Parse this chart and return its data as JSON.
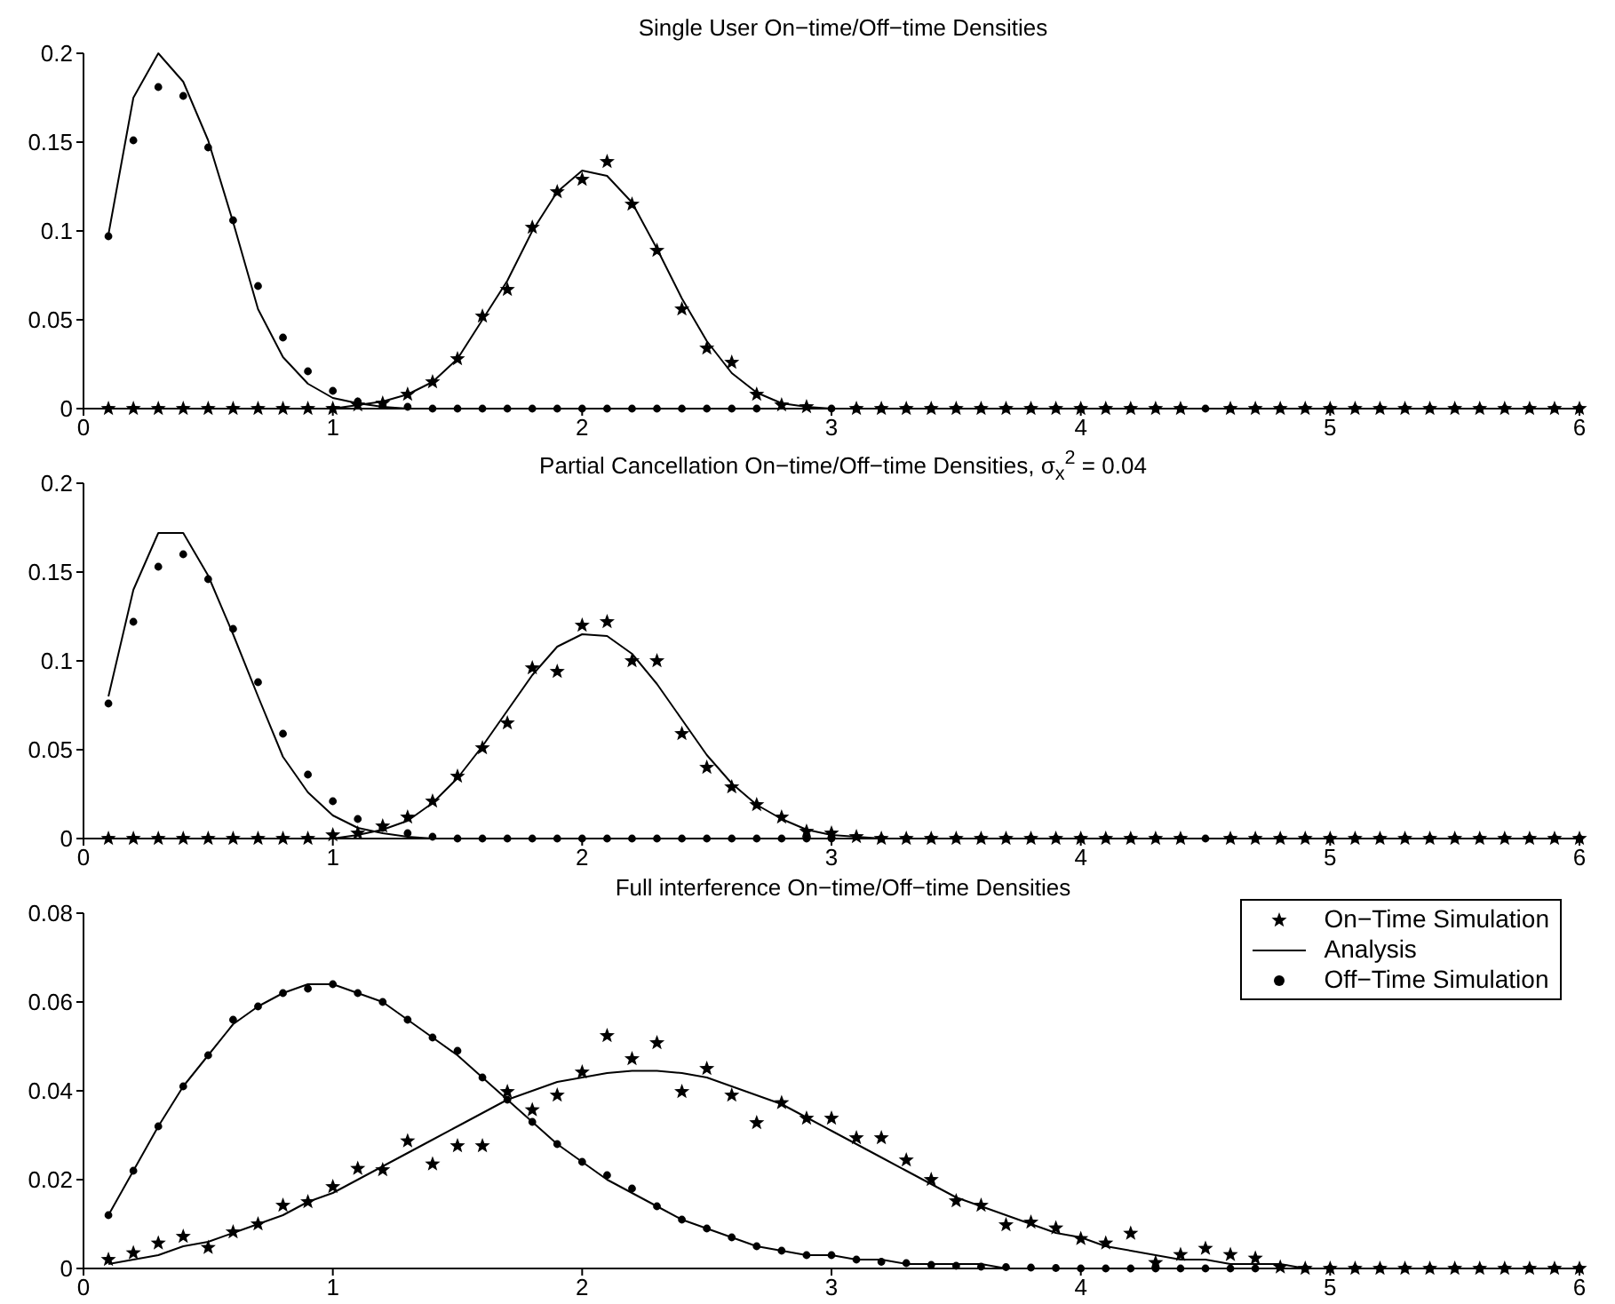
{
  "chart_data": [
    {
      "type": "scatter",
      "title": "Single User On−time/Off−time Densities",
      "x": [
        0.1,
        0.2,
        0.3,
        0.4,
        0.5,
        0.6,
        0.7,
        0.8,
        0.9,
        1.0,
        1.1,
        1.2,
        1.3,
        1.4,
        1.5,
        1.6,
        1.7,
        1.8,
        1.9,
        2.0,
        2.1,
        2.2,
        2.3,
        2.4,
        2.5,
        2.6,
        2.7,
        2.8,
        2.9,
        3.0,
        3.1,
        3.2,
        3.3,
        3.4,
        3.5,
        3.6,
        3.7,
        3.8,
        3.9,
        4.0,
        4.1,
        4.2,
        4.3,
        4.4,
        4.5,
        4.6,
        4.7,
        4.8,
        4.9,
        5.0,
        5.1,
        5.2,
        5.3,
        5.4,
        5.5,
        5.6,
        5.7,
        5.8,
        5.9,
        6.0
      ],
      "xlim": [
        0,
        6
      ],
      "xticks": [
        0,
        1,
        2,
        3,
        4,
        5,
        6
      ],
      "ylim": [
        0,
        0.2
      ],
      "yticks": [
        0,
        0.05,
        0.1,
        0.15,
        0.2
      ],
      "grid": false,
      "legend": false,
      "series": [
        {
          "type": "line",
          "marker": "none",
          "line_style": "solid",
          "color": "#000000",
          "values": [
            0,
            0,
            0,
            0,
            0,
            0,
            0,
            0,
            0,
            0,
            0.002,
            0.004,
            0.008,
            0.015,
            0.028,
            0.05,
            0.072,
            0.1,
            0.122,
            0.134,
            0.131,
            0.116,
            0.09,
            0.062,
            0.038,
            0.02,
            0.009,
            0.003,
            0.001,
            0,
            0,
            0,
            0,
            0,
            0,
            0,
            0,
            0,
            0,
            0,
            0,
            0,
            0,
            0,
            0,
            0,
            0,
            0,
            0,
            0,
            0,
            0,
            0,
            0,
            0,
            0,
            0,
            0,
            0,
            0
          ]
        },
        {
          "type": "line",
          "marker": "none",
          "line_style": "solid",
          "color": "#000000",
          "values": [
            0.098,
            0.175,
            0.2,
            0.184,
            0.151,
            0.105,
            0.056,
            0.029,
            0.014,
            0.006,
            0.003,
            0.001,
            0,
            0,
            0,
            0,
            0,
            0,
            0,
            0,
            0,
            0,
            0,
            0,
            0,
            0,
            0,
            0,
            0,
            0,
            0,
            0,
            0,
            0,
            0,
            0,
            0,
            0,
            0,
            0,
            0,
            0,
            0,
            0,
            0,
            0,
            0,
            0,
            0,
            0,
            0,
            0,
            0,
            0,
            0,
            0,
            0,
            0,
            0,
            0
          ]
        },
        {
          "marker": "star",
          "color": "#000000",
          "values": [
            0,
            0,
            0,
            0,
            0,
            0,
            0,
            0,
            0,
            0,
            0.002,
            0.003,
            0.008,
            0.015,
            0.028,
            0.052,
            0.067,
            0.102,
            0.122,
            0.129,
            0.139,
            0.115,
            0.089,
            0.056,
            0.034,
            0.026,
            0.008,
            0.002,
            0.001,
            null,
            0,
            0,
            0,
            0,
            0,
            0,
            0,
            0,
            0,
            0,
            0,
            0,
            0,
            0,
            null,
            0,
            0,
            0,
            0,
            0,
            0,
            0,
            0,
            0,
            0,
            0,
            0,
            0,
            0,
            0
          ]
        },
        {
          "marker": "circle",
          "color": "#000000",
          "values": [
            0.097,
            0.151,
            0.181,
            0.176,
            0.147,
            0.106,
            0.069,
            0.04,
            0.021,
            0.01,
            0.004,
            0.002,
            0.001,
            0,
            0,
            0,
            0,
            0,
            0,
            0,
            0,
            0,
            0,
            0,
            0,
            0,
            0,
            null,
            null,
            0,
            0,
            0,
            0,
            0,
            0,
            0,
            0,
            0,
            0,
            0,
            0,
            0,
            0,
            0,
            0,
            0,
            0,
            0,
            0,
            0,
            0,
            0,
            0,
            0,
            0,
            0,
            0,
            0,
            0,
            0
          ]
        }
      ]
    },
    {
      "type": "scatter",
      "title": "Partial Cancellation On−time/Off−time Densities, σ$_{x}$$^{2}$ = 0.04",
      "x": [
        0.1,
        0.2,
        0.3,
        0.4,
        0.5,
        0.6,
        0.7,
        0.8,
        0.9,
        1.0,
        1.1,
        1.2,
        1.3,
        1.4,
        1.5,
        1.6,
        1.7,
        1.8,
        1.9,
        2.0,
        2.1,
        2.2,
        2.3,
        2.4,
        2.5,
        2.6,
        2.7,
        2.8,
        2.9,
        3.0,
        3.1,
        3.2,
        3.3,
        3.4,
        3.5,
        3.6,
        3.7,
        3.8,
        3.9,
        4.0,
        4.1,
        4.2,
        4.3,
        4.4,
        4.5,
        4.6,
        4.7,
        4.8,
        4.9,
        5.0,
        5.1,
        5.2,
        5.3,
        5.4,
        5.5,
        5.6,
        5.7,
        5.8,
        5.9,
        6.0
      ],
      "xlim": [
        0,
        6
      ],
      "xticks": [
        0,
        1,
        2,
        3,
        4,
        5,
        6
      ],
      "ylim": [
        0,
        0.2
      ],
      "yticks": [
        0,
        0.05,
        0.1,
        0.15,
        0.2
      ],
      "grid": false,
      "legend": false,
      "series": [
        {
          "type": "line",
          "marker": "none",
          "line_style": "solid",
          "color": "#000000",
          "values": [
            0,
            0,
            0,
            0,
            0,
            0,
            0,
            0,
            0,
            0,
            0.002,
            0.005,
            0.01,
            0.02,
            0.034,
            0.052,
            0.072,
            0.092,
            0.108,
            0.115,
            0.114,
            0.104,
            0.087,
            0.067,
            0.047,
            0.031,
            0.019,
            0.011,
            0.005,
            0.002,
            0.001,
            0,
            0,
            0,
            0,
            0,
            0,
            0,
            0,
            0,
            0,
            0,
            0,
            0,
            0,
            0,
            0,
            0,
            0,
            0,
            0,
            0,
            0,
            0,
            0,
            0,
            0,
            0,
            0,
            0
          ]
        },
        {
          "type": "line",
          "marker": "none",
          "line_style": "solid",
          "color": "#000000",
          "values": [
            0.08,
            0.14,
            0.172,
            0.172,
            0.148,
            0.115,
            0.08,
            0.046,
            0.026,
            0.013,
            0.006,
            0.003,
            0.001,
            0,
            0,
            0,
            0,
            0,
            0,
            0,
            0,
            0,
            0,
            0,
            0,
            0,
            0,
            0,
            0,
            0,
            0,
            0,
            0,
            0,
            0,
            0,
            0,
            0,
            0,
            0,
            0,
            0,
            0,
            0,
            0,
            0,
            0,
            0,
            0,
            0,
            0,
            0,
            0,
            0,
            0,
            0,
            0,
            0,
            0,
            0
          ]
        },
        {
          "marker": "star",
          "color": "#000000",
          "values": [
            0,
            0,
            0,
            0,
            0,
            0,
            0,
            0,
            0,
            0.002,
            0.003,
            0.007,
            0.012,
            0.021,
            0.035,
            0.051,
            0.065,
            0.096,
            0.094,
            0.12,
            0.122,
            0.1,
            0.1,
            0.059,
            0.04,
            0.029,
            0.019,
            0.012,
            0.004,
            0.003,
            0.001,
            0,
            0,
            0,
            0,
            0,
            0,
            0,
            0,
            0,
            0,
            0,
            0,
            0,
            null,
            0,
            0,
            0,
            0,
            0,
            0,
            0,
            0,
            0,
            0,
            0,
            0,
            0,
            0,
            0
          ]
        },
        {
          "marker": "circle",
          "color": "#000000",
          "values": [
            0.076,
            0.122,
            0.153,
            0.16,
            0.146,
            0.118,
            0.088,
            0.059,
            0.036,
            0.021,
            0.011,
            0.006,
            0.003,
            0.001,
            0,
            0,
            0,
            0,
            0,
            0,
            0,
            0,
            0,
            0,
            0,
            0,
            0,
            0,
            0,
            0,
            null,
            0,
            0,
            0,
            0,
            0,
            0,
            0,
            0,
            0,
            0,
            0,
            0,
            0,
            0,
            0,
            0,
            0,
            0,
            0,
            0,
            0,
            0,
            0,
            0,
            0,
            0,
            0,
            0,
            0
          ]
        }
      ]
    },
    {
      "type": "scatter",
      "title": "Full interference On−time/Off−time Densities",
      "x": [
        0.1,
        0.2,
        0.3,
        0.4,
        0.5,
        0.6,
        0.7,
        0.8,
        0.9,
        1.0,
        1.1,
        1.2,
        1.3,
        1.4,
        1.5,
        1.6,
        1.7,
        1.8,
        1.9,
        2.0,
        2.1,
        2.2,
        2.3,
        2.4,
        2.5,
        2.6,
        2.7,
        2.8,
        2.9,
        3.0,
        3.1,
        3.2,
        3.3,
        3.4,
        3.5,
        3.6,
        3.7,
        3.8,
        3.9,
        4.0,
        4.1,
        4.2,
        4.3,
        4.4,
        4.5,
        4.6,
        4.7,
        4.8,
        4.9,
        5.0,
        5.1,
        5.2,
        5.3,
        5.4,
        5.5,
        5.6,
        5.7,
        5.8,
        5.9,
        6.0
      ],
      "xlim": [
        0,
        6
      ],
      "xticks": [
        0,
        1,
        2,
        3,
        4,
        5,
        6
      ],
      "ylim": [
        0,
        0.08
      ],
      "yticks": [
        0,
        0.02,
        0.04,
        0.06,
        0.08
      ],
      "grid": false,
      "legend": "top right",
      "series": [
        {
          "name": "Analysis",
          "type": "line",
          "marker": "none",
          "line_style": "solid",
          "color": "#000000",
          "values": [
            0.001,
            0.002,
            0.003,
            0.005,
            0.006,
            0.008,
            0.01,
            0.012,
            0.015,
            0.017,
            0.02,
            0.023,
            0.026,
            0.029,
            0.032,
            0.035,
            0.038,
            0.04,
            0.042,
            0.043,
            0.044,
            0.0445,
            0.0445,
            0.044,
            0.043,
            0.041,
            0.039,
            0.037,
            0.034,
            0.031,
            0.028,
            0.025,
            0.022,
            0.019,
            0.016,
            0.014,
            0.012,
            0.01,
            0.008,
            0.007,
            0.005,
            0.004,
            0.003,
            0.002,
            0.002,
            0.001,
            0.001,
            0.001,
            0,
            0,
            0,
            0,
            0,
            0,
            0,
            0,
            0,
            0,
            0,
            0
          ]
        },
        {
          "type": "line",
          "marker": "none",
          "line_style": "solid",
          "color": "#000000",
          "values": [
            0.012,
            0.022,
            0.032,
            0.041,
            0.048,
            0.055,
            0.059,
            0.062,
            0.064,
            0.064,
            0.062,
            0.06,
            0.056,
            0.052,
            0.048,
            0.043,
            0.038,
            0.033,
            0.028,
            0.024,
            0.02,
            0.017,
            0.014,
            0.011,
            0.009,
            0.007,
            0.005,
            0.004,
            0.003,
            0.003,
            0.002,
            0.002,
            0.001,
            0.001,
            0.001,
            0.001,
            0,
            0,
            0,
            0,
            0,
            0,
            0,
            0,
            0,
            0,
            0,
            0,
            0,
            0,
            0,
            0,
            0,
            0,
            0,
            0,
            0,
            0,
            0,
            0
          ]
        },
        {
          "name": "On−Time Simulation",
          "marker": "star",
          "color": "#000000",
          "values": [
            0.002,
            0.0035,
            0.0057,
            0.0072,
            0.0047,
            0.0082,
            0.01,
            0.0142,
            0.015,
            0.0184,
            0.0225,
            0.0222,
            0.0287,
            0.0235,
            0.0276,
            0.0276,
            0.0398,
            0.0357,
            0.039,
            0.0442,
            0.0524,
            0.0472,
            0.0508,
            0.0398,
            0.045,
            0.039,
            0.0328,
            0.0373,
            0.0338,
            0.0338,
            0.0294,
            0.0294,
            0.0244,
            0.02,
            0.0152,
            0.0142,
            0.0098,
            0.0104,
            0.0091,
            0.0067,
            0.0057,
            0.0079,
            0.0013,
            0.0031,
            0.0045,
            0.0031,
            0.0023,
            0.0003,
            0,
            0,
            0,
            0,
            0,
            0,
            0,
            0,
            0,
            0,
            0,
            0
          ]
        },
        {
          "name": "Off−Time Simulation",
          "marker": "circle",
          "color": "#000000",
          "values": [
            0.012,
            0.022,
            0.032,
            0.041,
            0.048,
            0.056,
            0.059,
            0.062,
            0.063,
            0.064,
            0.062,
            0.06,
            0.056,
            0.052,
            0.049,
            0.043,
            0.038,
            0.033,
            0.028,
            0.024,
            0.021,
            0.018,
            0.014,
            0.011,
            0.009,
            0.007,
            0.005,
            0.004,
            0.003,
            0.003,
            0.002,
            0.0015,
            0.0012,
            0.0008,
            0.0006,
            0.0004,
            0.0003,
            0.0002,
            0.0001,
            0,
            0,
            0,
            0,
            0,
            0,
            0,
            0,
            null,
            0,
            0,
            0,
            0,
            0,
            0,
            0,
            0,
            0,
            0,
            0,
            0
          ]
        }
      ]
    }
  ]
}
